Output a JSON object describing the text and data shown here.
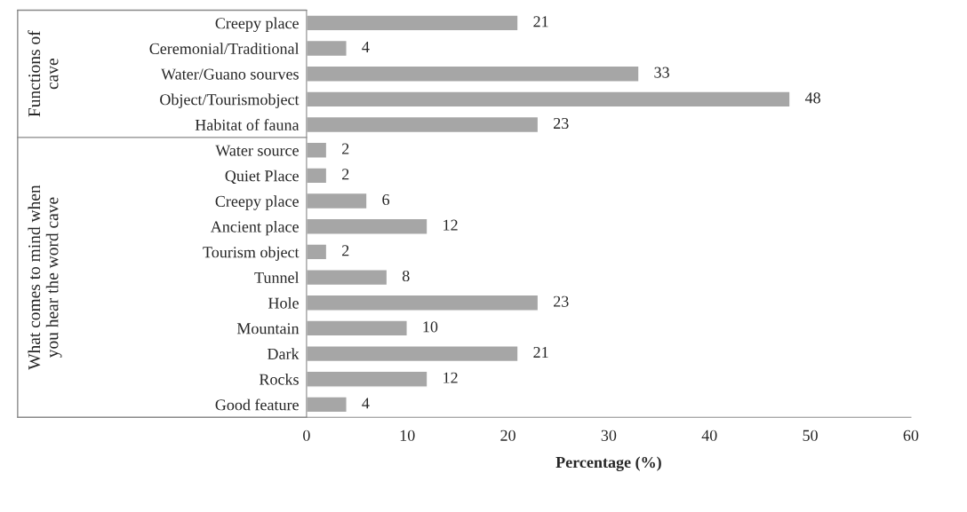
{
  "chart_data": {
    "type": "bar",
    "orientation": "horizontal",
    "xlabel": "Percentage (%)",
    "categories": [
      "Creepy place",
      "Ceremonial/Traditional",
      "Water/Guano sourves",
      "Object/Tourismobject",
      "Habitat of fauna",
      "Water source",
      "Quiet Place",
      "Creepy place",
      "Ancient place",
      "Tourism object",
      "Tunnel",
      "Hole",
      "Mountain",
      "Dark",
      "Rocks",
      "Good feature"
    ],
    "values": [
      21,
      4,
      33,
      48,
      23,
      2,
      2,
      6,
      12,
      2,
      8,
      23,
      10,
      21,
      12,
      4
    ],
    "color": "#a6a6a6",
    "xlim": [
      0,
      60
    ],
    "xticks": [
      0,
      10,
      20,
      30,
      40,
      50,
      60
    ],
    "data_labels": true,
    "grid": false,
    "annotations": [
      "Functions of\ncave",
      "What comes to mind when\nyou hear the word cave"
    ]
  }
}
